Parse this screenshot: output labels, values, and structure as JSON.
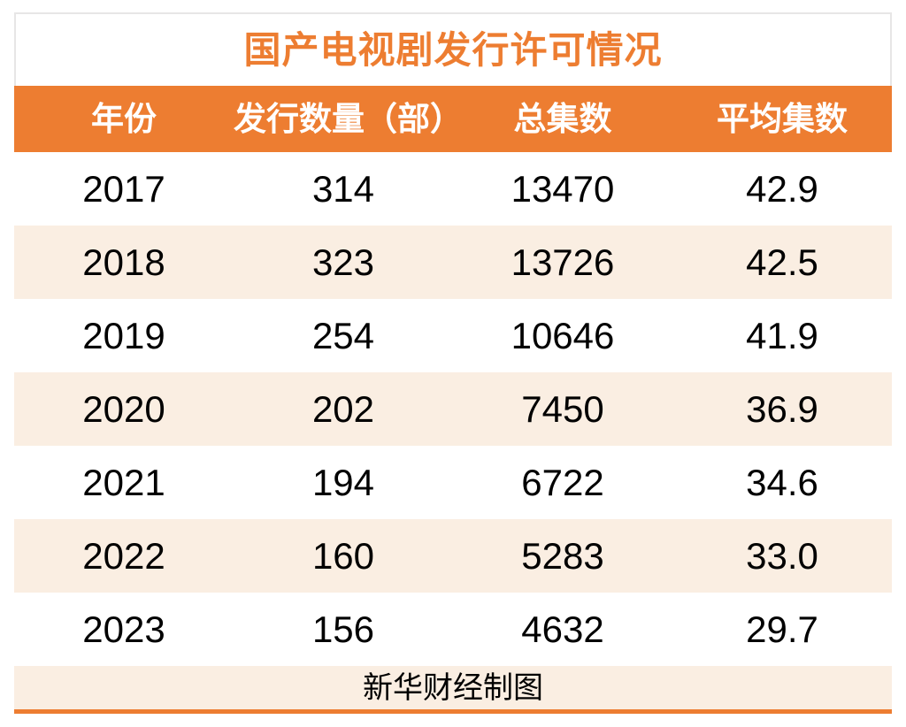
{
  "chart_data": {
    "type": "table",
    "title": "国产电视剧发行许可情况",
    "columns": [
      "年份",
      "发行数量（部）",
      "总集数",
      "平均集数"
    ],
    "rows": [
      {
        "year": "2017",
        "count": "314",
        "total_episodes": "13470",
        "avg_episodes": "42.9"
      },
      {
        "year": "2018",
        "count": "323",
        "total_episodes": "13726",
        "avg_episodes": "42.5"
      },
      {
        "year": "2019",
        "count": "254",
        "total_episodes": "10646",
        "avg_episodes": "41.9"
      },
      {
        "year": "2020",
        "count": "202",
        "total_episodes": "7450",
        "avg_episodes": "36.9"
      },
      {
        "year": "2021",
        "count": "194",
        "total_episodes": "6722",
        "avg_episodes": "34.6"
      },
      {
        "year": "2022",
        "count": "160",
        "total_episodes": "5283",
        "avg_episodes": "33.0"
      },
      {
        "year": "2023",
        "count": "156",
        "total_episodes": "4632",
        "avg_episodes": "29.7"
      }
    ],
    "source_note": "新华财经制图",
    "layout": {
      "column_alignment": "center",
      "stripe_pattern": "even rows white, odd rows peach, footer peach",
      "grid": "none"
    }
  },
  "colors": {
    "accent_orange": "#ED7D31",
    "stripe_peach": "#FAEEE2",
    "border_gray": "#E7E6E6",
    "header_text": "#FFFFFF",
    "text_black": "#000000"
  }
}
